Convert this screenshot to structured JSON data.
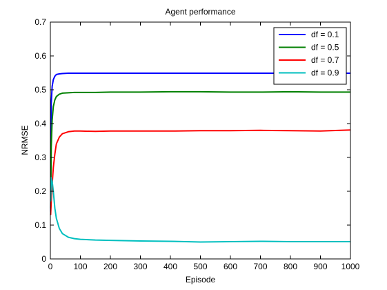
{
  "chart_data": {
    "type": "line",
    "title": "Agent performance",
    "xlabel": "Episode",
    "ylabel": "NRMSE",
    "xlim": [
      0,
      1000
    ],
    "ylim": [
      0,
      0.7
    ],
    "xticks": [
      0,
      100,
      200,
      300,
      400,
      500,
      600,
      700,
      800,
      900,
      1000
    ],
    "yticks": [
      0,
      0.1,
      0.2,
      0.3,
      0.4,
      0.5,
      0.6,
      0.7
    ],
    "grid": false,
    "legend_position": "top-right",
    "series": [
      {
        "name": "df = 0.1",
        "color": "#0000ff",
        "x": [
          1,
          3,
          6,
          10,
          15,
          20,
          30,
          40,
          60,
          80,
          100,
          150,
          200,
          300,
          400,
          500,
          600,
          700,
          800,
          900,
          1000
        ],
        "y": [
          0.14,
          0.46,
          0.51,
          0.53,
          0.54,
          0.545,
          0.547,
          0.548,
          0.549,
          0.549,
          0.549,
          0.549,
          0.549,
          0.549,
          0.549,
          0.549,
          0.549,
          0.549,
          0.549,
          0.549,
          0.549
        ]
      },
      {
        "name": "df = 0.5",
        "color": "#008000",
        "x": [
          1,
          3,
          6,
          10,
          15,
          20,
          30,
          40,
          60,
          80,
          100,
          150,
          200,
          300,
          400,
          500,
          600,
          700,
          800,
          900,
          1000
        ],
        "y": [
          0.15,
          0.33,
          0.41,
          0.45,
          0.47,
          0.48,
          0.487,
          0.49,
          0.491,
          0.492,
          0.492,
          0.492,
          0.493,
          0.493,
          0.494,
          0.494,
          0.493,
          0.493,
          0.494,
          0.493,
          0.493
        ]
      },
      {
        "name": "df = 0.7",
        "color": "#ff0000",
        "x": [
          1,
          3,
          6,
          10,
          15,
          20,
          30,
          40,
          60,
          80,
          100,
          150,
          200,
          300,
          400,
          500,
          600,
          700,
          800,
          900,
          1000
        ],
        "y": [
          0.13,
          0.17,
          0.22,
          0.27,
          0.31,
          0.34,
          0.36,
          0.37,
          0.376,
          0.378,
          0.378,
          0.377,
          0.378,
          0.378,
          0.378,
          0.379,
          0.379,
          0.38,
          0.379,
          0.378,
          0.381
        ]
      },
      {
        "name": "df = 0.9",
        "color": "#00bfbf",
        "x": [
          1,
          3,
          6,
          10,
          15,
          20,
          30,
          40,
          60,
          80,
          100,
          150,
          200,
          300,
          400,
          500,
          600,
          700,
          800,
          900,
          1000
        ],
        "y": [
          0.17,
          0.24,
          0.23,
          0.2,
          0.15,
          0.12,
          0.09,
          0.075,
          0.064,
          0.06,
          0.058,
          0.056,
          0.055,
          0.053,
          0.052,
          0.05,
          0.051,
          0.052,
          0.051,
          0.051,
          0.051
        ]
      }
    ]
  }
}
